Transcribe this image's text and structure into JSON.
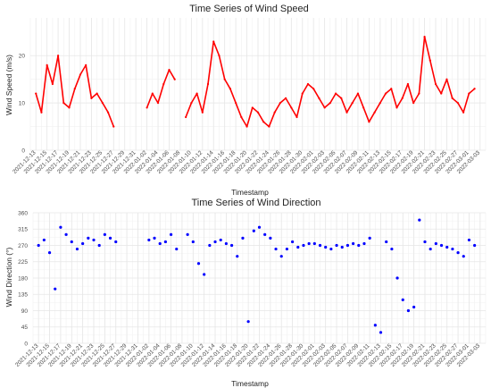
{
  "chart_data": [
    {
      "type": "line",
      "title": "Time Series of Wind Speed",
      "xlabel": "Timestamp",
      "ylabel": "Wind Speed (m/s)",
      "color": "#ff0000",
      "xlim": [
        "2021-12-12",
        "2022-03-04"
      ],
      "ylim": [
        0,
        28
      ],
      "yticks": [
        0,
        10,
        20
      ],
      "grid": true,
      "x_tick_labels": [
        "2021-12-13",
        "2021-12-15",
        "2021-12-17",
        "2021-12-19",
        "2021-12-21",
        "2021-12-23",
        "2021-12-25",
        "2021-12-27",
        "2021-12-29",
        "2021-12-31",
        "2022-01-02",
        "2022-01-04",
        "2022-01-06",
        "2022-01-08",
        "2022-01-10",
        "2022-01-12",
        "2022-01-14",
        "2022-01-16",
        "2022-01-18",
        "2022-01-20",
        "2022-01-22",
        "2022-01-24",
        "2022-01-26",
        "2022-01-28",
        "2022-01-30",
        "2022-02-01",
        "2022-02-03",
        "2022-02-05",
        "2022-02-07",
        "2022-02-09",
        "2022-02-11",
        "2022-02-13",
        "2022-02-15",
        "2022-02-17",
        "2022-02-19",
        "2022-02-21",
        "2022-02-23",
        "2022-02-25",
        "2022-02-27",
        "2022-03-01",
        "2022-03-03"
      ],
      "series": [
        {
          "x": [
            "2021-12-13",
            "2021-12-14",
            "2021-12-15",
            "2021-12-16",
            "2021-12-17",
            "2021-12-18",
            "2021-12-19",
            "2021-12-20",
            "2021-12-21",
            "2021-12-22",
            "2021-12-23",
            "2021-12-24",
            "2021-12-25",
            "2021-12-26",
            "2021-12-27",
            "2021-12-28",
            "2021-12-29",
            "2021-12-30",
            "2021-12-31",
            "2022-01-01",
            "2022-01-02",
            "2022-01-03",
            "2022-01-04",
            "2022-01-05",
            "2022-01-06",
            "2022-01-07",
            "2022-01-08",
            "2022-01-09",
            "2022-01-10",
            "2022-01-11",
            "2022-01-12",
            "2022-01-13",
            "2022-01-14",
            "2022-01-15",
            "2022-01-16",
            "2022-01-17",
            "2022-01-18",
            "2022-01-19",
            "2022-01-20",
            "2022-01-21",
            "2022-01-22",
            "2022-01-23",
            "2022-01-24",
            "2022-01-25",
            "2022-01-26",
            "2022-01-27",
            "2022-01-28",
            "2022-01-29",
            "2022-01-30",
            "2022-01-31",
            "2022-02-01",
            "2022-02-02",
            "2022-02-03",
            "2022-02-04",
            "2022-02-05",
            "2022-02-06",
            "2022-02-07",
            "2022-02-08",
            "2022-02-09",
            "2022-02-10",
            "2022-02-11",
            "2022-02-12",
            "2022-02-13",
            "2022-02-14",
            "2022-02-15",
            "2022-02-16",
            "2022-02-17",
            "2022-02-18",
            "2022-02-19",
            "2022-02-20",
            "2022-02-21",
            "2022-02-22",
            "2022-02-23",
            "2022-02-24",
            "2022-02-25",
            "2022-02-26",
            "2022-02-27",
            "2022-02-28",
            "2022-03-01",
            "2022-03-02"
          ],
          "values": [
            12,
            8,
            18,
            14,
            20,
            10,
            9,
            13,
            16,
            18,
            11,
            12,
            10,
            8,
            5,
            null,
            null,
            null,
            null,
            null,
            9,
            12,
            10,
            14,
            17,
            15,
            null,
            7,
            10,
            12,
            8,
            14,
            23,
            20,
            15,
            13,
            10,
            7,
            5,
            9,
            8,
            6,
            5,
            8,
            10,
            11,
            9,
            7,
            12,
            14,
            13,
            11,
            9,
            10,
            12,
            11,
            8,
            10,
            12,
            9,
            6,
            8,
            10,
            12,
            13,
            9,
            11,
            14,
            10,
            12,
            24,
            19,
            14,
            12,
            15,
            11,
            10,
            8,
            12,
            13
          ]
        }
      ]
    },
    {
      "type": "scatter",
      "title": "Time Series of Wind Direction",
      "xlabel": "Timestamp",
      "ylabel": "Wind Direction (°)",
      "color": "#0000ff",
      "xlim": [
        "2021-12-12",
        "2022-03-04"
      ],
      "ylim": [
        0,
        360
      ],
      "yticks": [
        0,
        45,
        90,
        135,
        180,
        225,
        270,
        315,
        360
      ],
      "grid": true,
      "x_tick_labels": [
        "2021-12-13",
        "2021-12-15",
        "2021-12-17",
        "2021-12-19",
        "2021-12-21",
        "2021-12-23",
        "2021-12-25",
        "2021-12-27",
        "2021-12-29",
        "2021-12-31",
        "2022-01-02",
        "2022-01-04",
        "2022-01-06",
        "2022-01-08",
        "2022-01-10",
        "2022-01-12",
        "2022-01-14",
        "2022-01-16",
        "2022-01-18",
        "2022-01-20",
        "2022-01-22",
        "2022-01-24",
        "2022-01-26",
        "2022-01-28",
        "2022-01-30",
        "2022-02-01",
        "2022-02-03",
        "2022-02-05",
        "2022-02-07",
        "2022-02-09",
        "2022-02-11",
        "2022-02-13",
        "2022-02-15",
        "2022-02-17",
        "2022-02-19",
        "2022-02-21",
        "2022-02-23",
        "2022-02-25",
        "2022-02-27",
        "2022-03-01",
        "2022-03-03"
      ],
      "series": [
        {
          "x": [
            "2021-12-13",
            "2021-12-14",
            "2021-12-15",
            "2021-12-16",
            "2021-12-17",
            "2021-12-18",
            "2021-12-19",
            "2021-12-20",
            "2021-12-21",
            "2021-12-22",
            "2021-12-23",
            "2021-12-24",
            "2021-12-25",
            "2021-12-26",
            "2021-12-27",
            "2021-12-28",
            "2021-12-29",
            "2021-12-30",
            "2021-12-31",
            "2022-01-01",
            "2022-01-02",
            "2022-01-03",
            "2022-01-04",
            "2022-01-05",
            "2022-01-06",
            "2022-01-07",
            "2022-01-08",
            "2022-01-09",
            "2022-01-10",
            "2022-01-11",
            "2022-01-12",
            "2022-01-13",
            "2022-01-14",
            "2022-01-15",
            "2022-01-16",
            "2022-01-17",
            "2022-01-18",
            "2022-01-19",
            "2022-01-20",
            "2022-01-21",
            "2022-01-22",
            "2022-01-23",
            "2022-01-24",
            "2022-01-25",
            "2022-01-26",
            "2022-01-27",
            "2022-01-28",
            "2022-01-29",
            "2022-01-30",
            "2022-01-31",
            "2022-02-01",
            "2022-02-02",
            "2022-02-03",
            "2022-02-04",
            "2022-02-05",
            "2022-02-06",
            "2022-02-07",
            "2022-02-08",
            "2022-02-09",
            "2022-02-10",
            "2022-02-11",
            "2022-02-12",
            "2022-02-13",
            "2022-02-14",
            "2022-02-15",
            "2022-02-16",
            "2022-02-17",
            "2022-02-18",
            "2022-02-19",
            "2022-02-20",
            "2022-02-21",
            "2022-02-22",
            "2022-02-23",
            "2022-02-24",
            "2022-02-25",
            "2022-02-26",
            "2022-02-27",
            "2022-02-28",
            "2022-03-01",
            "2022-03-02"
          ],
          "values": [
            270,
            285,
            250,
            150,
            320,
            300,
            280,
            260,
            275,
            290,
            285,
            270,
            300,
            290,
            280,
            null,
            null,
            null,
            null,
            null,
            285,
            290,
            275,
            280,
            300,
            260,
            null,
            300,
            280,
            220,
            190,
            270,
            280,
            285,
            275,
            270,
            240,
            290,
            60,
            310,
            320,
            300,
            290,
            260,
            240,
            260,
            280,
            265,
            270,
            275,
            275,
            270,
            265,
            260,
            270,
            265,
            270,
            275,
            270,
            275,
            290,
            50,
            30,
            280,
            260,
            180,
            120,
            90,
            100,
            340,
            280,
            260,
            275,
            270,
            265,
            260,
            250,
            240,
            285,
            270
          ]
        }
      ]
    }
  ]
}
